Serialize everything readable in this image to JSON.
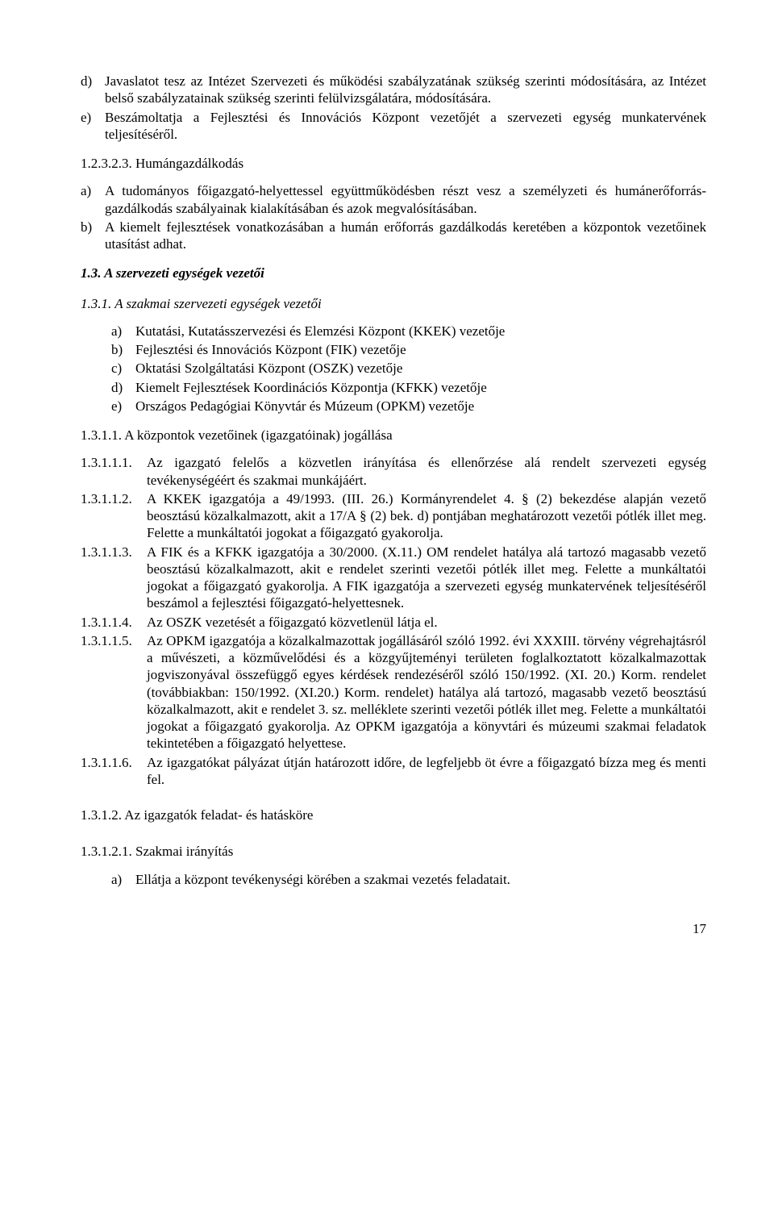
{
  "list1": {
    "d": "Javaslatot tesz az Intézet Szervezeti és működési szabályzatának szükség szerinti módosítására, az Intézet belső szabályzatainak szükség szerinti felülvizsgálatára, módosítására.",
    "e": "Beszámoltatja a Fejlesztési és Innovációs Központ vezetőjét a szervezeti egység munkatervének teljesítéséről."
  },
  "h1_2_3_2_3": "1.2.3.2.3. Humángazdálkodás",
  "list2": {
    "a": "A tudományos főigazgató-helyettessel együttműködésben részt vesz a személyzeti és humánerőforrás-gazdálkodás szabályainak kialakításában és azok megvalósításában.",
    "b": "A kiemelt fejlesztések vonatkozásában a humán erőforrás gazdálkodás keretében a központok vezetőinek utasítást adhat."
  },
  "h1_3": "1.3. A szervezeti egységek vezetői",
  "h1_3_1": "1.3.1. A szakmai szervezeti egységek vezetői",
  "list3": {
    "a": "Kutatási, Kutatásszervezési és Elemzési Központ (KKEK) vezetője",
    "b": "Fejlesztési és Innovációs Központ (FIK) vezetője",
    "c": "Oktatási Szolgáltatási Központ (OSZK) vezetője",
    "d": "Kiemelt Fejlesztések Koordinációs Központja (KFKK) vezetője",
    "e": "Országos Pedagógiai Könyvtár és Múzeum (OPKM) vezetője"
  },
  "h1_3_1_1": "1.3.1.1. A központok vezetőinek (igazgatóinak) jogállása",
  "list4": {
    "1": "Az igazgató felelős a közvetlen irányítása és ellenőrzése alá rendelt szervezeti egység tevékenységéért és szakmai munkájáért.",
    "2": "A KKEK igazgatója a 49/1993. (III. 26.) Kormányrendelet 4. § (2) bekezdése alapján vezető beosztású közalkalmazott, akit a 17/A § (2) bek. d) pontjában meghatározott vezetői pótlék illet meg. Felette a munkáltatói jogokat a főigazgató gyakorolja.",
    "3": "A FIK és a KFKK igazgatója a 30/2000. (X.11.) OM rendelet  hatálya alá tartozó magasabb vezető beosztású közalkalmazott, akit e rendelet szerinti vezetői pótlék illet meg. Felette a munkáltatói jogokat a főigazgató gyakorolja. A FIK igazgatója a szervezeti egység munkatervének teljesítéséről beszámol a fejlesztési főigazgató-helyettesnek.",
    "4": "Az OSZK vezetését a főigazgató közvetlenül látja el.",
    "5": "Az OPKM igazgatója a közalkalmazottak jogállásáról szóló 1992. évi XXXIII. törvény végrehajtásról a művészeti, a közművelődési és a közgyűjteményi területen foglalkoztatott közalkalmazottak jogviszonyával összefüggő egyes kérdések rendezéséről szóló 150/1992. (XI. 20.) Korm. rendelet (továbbiakban: 150/1992. (XI.20.) Korm. rendelet) hatálya alá tartozó, magasabb vezető beosztású közalkalmazott, akit e rendelet 3. sz. melléklete szerinti vezetői pótlék illet meg. Felette a munkáltatói jogokat a főigazgató gyakorolja. Az OPKM igazgatója a könyvtári és múzeumi szakmai feladatok tekintetében a főigazgató helyettese.",
    "6": "Az igazgatókat pályázat útján határozott időre, de legfeljebb öt évre a főigazgató bízza meg és menti fel."
  },
  "labels4": {
    "1": "1.3.1.1.1.",
    "2": "1.3.1.1.2.",
    "3": "1.3.1.1.3.",
    "4": "1.3.1.1.4.",
    "5": "1.3.1.1.5.",
    "6": "1.3.1.1.6."
  },
  "h1_3_1_2": "1.3.1.2. Az igazgatók feladat- és hatásköre",
  "h1_3_1_2_1": "1.3.1.2.1. Szakmai irányítás",
  "list5": {
    "a": "Ellátja a központ tevékenységi körében a szakmai vezetés feladatait."
  },
  "pageNumber": "17"
}
